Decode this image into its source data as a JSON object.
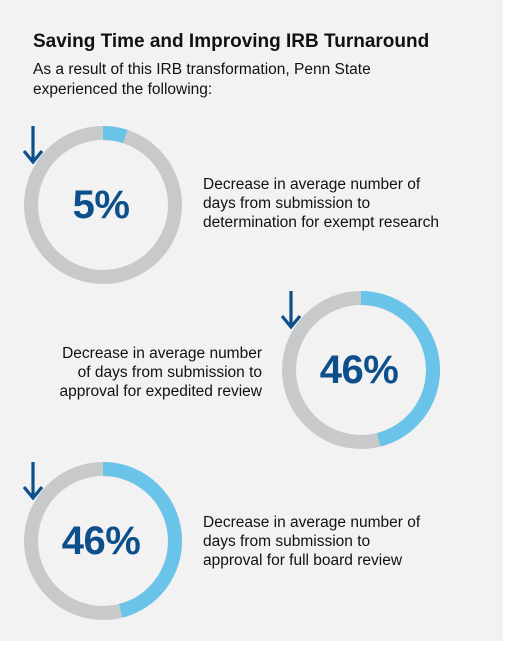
{
  "header": {
    "title": "Saving Time and Improving IRB Turnaround",
    "subtitle_line1": "As a result of this IRB transformation, Penn State",
    "subtitle_line2": "experienced the following:"
  },
  "colors": {
    "track": "#c7c9cb",
    "fill": "#6ac3e8",
    "stat_text": "#0d4f8b"
  },
  "stats": [
    {
      "value_label": "5%",
      "percent": 5,
      "arrow_icon": "down-arrow-icon",
      "description": [
        "Decrease in average number of",
        "days from submission to",
        "determination for exempt research"
      ]
    },
    {
      "value_label": "46%",
      "percent": 46,
      "arrow_icon": "down-arrow-icon",
      "description": [
        "Decrease in average number",
        "of days from submission to",
        "approval for expedited review"
      ]
    },
    {
      "value_label": "46%",
      "percent": 46,
      "arrow_icon": "down-arrow-icon",
      "description": [
        "Decrease in average number of",
        "days from submission to",
        "approval for full board review"
      ]
    }
  ]
}
